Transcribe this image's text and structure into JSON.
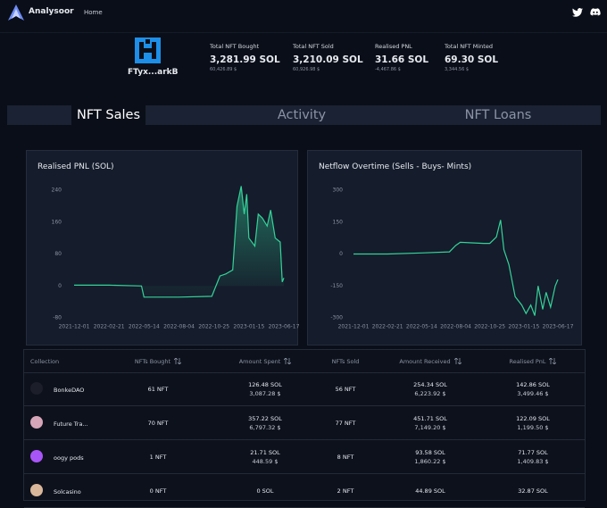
{
  "nav": {
    "brand": "Analysoor",
    "links": [
      "Home"
    ]
  },
  "profile": {
    "name": "FTyx...arkB"
  },
  "stats": [
    {
      "label": "Total NFT Bought",
      "value": "3,281.99 SOL",
      "sub": "60,426.89 $"
    },
    {
      "label": "Total NFT Sold",
      "value": "3,210.09 SOL",
      "sub": "60,926.98 $"
    },
    {
      "label": "Realised PNL",
      "value": "31.66 SOL",
      "sub": "-4,467.86 $"
    },
    {
      "label": "Total NFT Minted",
      "value": "69.30 SOL",
      "sub": "3,344.56 $"
    }
  ],
  "tabs": [
    "NFT Sales",
    "Activity",
    "NFT Loans"
  ],
  "chart_data": [
    {
      "type": "area",
      "title": "Realised PNL (SOL)",
      "color": "#34d399",
      "x": [
        "2021-12-01",
        "2022-02-21",
        "2022-05-08",
        "2022-05-14",
        "2022-08-04",
        "2022-10-20",
        "2022-11-08",
        "2022-11-22",
        "2022-12-08",
        "2022-12-18",
        "2022-12-28",
        "2023-01-04",
        "2023-01-10",
        "2023-01-15",
        "2023-02-10",
        "2023-02-25",
        "2023-03-15",
        "2023-04-05",
        "2023-04-20",
        "2023-05-10",
        "2023-06-01",
        "2023-06-10",
        "2023-06-17"
      ],
      "values": [
        2,
        2,
        0,
        -28,
        -28,
        -26,
        25,
        30,
        40,
        200,
        250,
        180,
        230,
        120,
        100,
        180,
        170,
        150,
        190,
        120,
        110,
        10,
        20
      ],
      "xticks": [
        "2021-12-01",
        "2022-02-21",
        "2022-05-14",
        "2022-08-04",
        "2022-10-25",
        "2023-01-15",
        "2023-06-17"
      ],
      "ylim": [
        -80,
        240
      ],
      "yticks": [
        240,
        160,
        80,
        0,
        -80
      ]
    },
    {
      "type": "line",
      "title": "Netflow Overtime (Sells - Buys- Mints)",
      "color": "#34d399",
      "x": [
        "2021-12-01",
        "2022-02-21",
        "2022-05-14",
        "2022-07-20",
        "2022-08-04",
        "2022-08-15",
        "2022-10-10",
        "2022-10-25",
        "2022-11-10",
        "2022-11-20",
        "2022-11-28",
        "2022-12-10",
        "2022-12-25",
        "2023-01-10",
        "2023-01-25",
        "2023-02-15",
        "2023-03-05",
        "2023-03-20",
        "2023-04-10",
        "2023-04-25",
        "2023-05-15",
        "2023-06-05",
        "2023-06-17"
      ],
      "values": [
        0,
        0,
        5,
        10,
        40,
        55,
        50,
        50,
        80,
        160,
        20,
        -50,
        -200,
        -240,
        -280,
        -240,
        -290,
        -150,
        -260,
        -180,
        -250,
        -150,
        -120
      ],
      "xticks": [
        "2021-12-01",
        "2022-02-21",
        "2022-05-14",
        "2022-08-04",
        "2022-10-25",
        "2023-01-15",
        "2023-06-17"
      ],
      "ylim": [
        -300,
        300
      ],
      "yticks": [
        300,
        150,
        0,
        -150,
        -300
      ]
    }
  ],
  "table": {
    "headers": [
      "Collection",
      "NFTs Bought",
      "Amount Spent",
      "NFTs Sold",
      "Amount Received",
      "Realised PnL"
    ],
    "rows": [
      [
        {
          "name": "BonkeDAO"
        },
        "61 NFT",
        [
          "126.48 SOL",
          "3,087.28 $"
        ],
        "56 NFT",
        [
          "254.34 SOL",
          "6,223.92 $"
        ],
        [
          "142.86 SOL",
          "3,499.46 $"
        ]
      ],
      [
        {
          "name": "Future Tra..."
        },
        "70 NFT",
        [
          "357.22 SOL",
          "6,797.32 $"
        ],
        "77 NFT",
        [
          "451.71 SOL",
          "7,149.20 $"
        ],
        [
          "122.09 SOL",
          "1,199.50 $"
        ]
      ],
      [
        {
          "name": "oogy pods"
        },
        "1 NFT",
        [
          "21.71 SOL",
          "448.59 $"
        ],
        "8 NFT",
        [
          "93.58 SOL",
          "1,860.22 $"
        ],
        [
          "71.77 SOL",
          "1,409.83 $"
        ]
      ],
      [
        {
          "name": "Solcasino"
        },
        "0 NFT",
        [
          "0 SOL"
        ],
        "2 NFT",
        [
          "44.89 SOL"
        ],
        [
          "32.87 SOL"
        ]
      ]
    ]
  }
}
